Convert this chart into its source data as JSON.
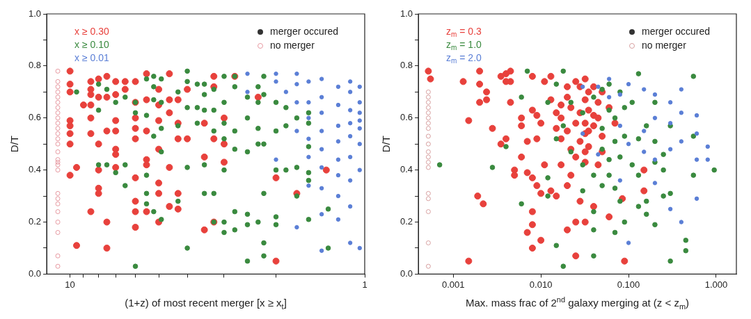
{
  "chart_data": [
    {
      "type": "scatter",
      "xlabel": "(1+z) of most recent merger [x ≥ x$_{t}$]",
      "ylabel": "D/T",
      "log": "x",
      "xlim": [
        12,
        1
      ],
      "xticks": [
        {
          "value": 10,
          "label": "10"
        },
        {
          "value": 9,
          "label": null
        },
        {
          "value": 8,
          "label": null
        },
        {
          "value": 7,
          "label": null
        },
        {
          "value": 6,
          "label": null
        },
        {
          "value": 5,
          "label": null
        },
        {
          "value": 4,
          "label": null
        },
        {
          "value": 3,
          "label": null
        },
        {
          "value": 2,
          "label": null
        },
        {
          "value": 1,
          "label": "1"
        }
      ],
      "ylim": [
        0,
        1
      ],
      "yticks": [
        {
          "value": 0,
          "label": "0.0"
        },
        {
          "value": 0.1,
          "label": null
        },
        {
          "value": 0.2,
          "label": "0.2"
        },
        {
          "value": 0.3,
          "label": null
        },
        {
          "value": 0.4,
          "label": "0.4"
        },
        {
          "value": 0.5,
          "label": null
        },
        {
          "value": 0.6,
          "label": "0.6"
        },
        {
          "value": 0.7,
          "label": null
        },
        {
          "value": 0.8,
          "label": "0.8"
        },
        {
          "value": 0.9,
          "label": null
        },
        {
          "value": 1,
          "label": "1.0"
        }
      ],
      "grid": false,
      "legend": "top right",
      "marker": "circle",
      "annotations": [
        "merger occured"
      ],
      "series": [
        {
          "name": "x ≥ 0.30",
          "color": "#e8413c",
          "x": [
            10,
            10,
            10,
            10,
            10,
            10,
            10,
            10,
            9.5,
            9.5,
            9,
            8.5,
            8.5,
            8.5,
            8.5,
            8.5,
            8.5,
            8.5,
            8,
            8,
            8,
            8,
            8,
            8,
            7.5,
            7.5,
            7.5,
            7.5,
            7.5,
            7,
            7,
            7,
            7,
            7,
            7,
            7,
            6.5,
            6.5,
            6,
            6,
            6,
            6,
            6,
            6,
            6,
            6,
            6,
            5.5,
            5.5,
            5.5,
            5.5,
            5.5,
            5.5,
            5,
            5,
            5,
            5,
            5,
            5,
            5,
            4.6,
            4.6,
            4.6,
            4.6,
            4.6,
            4.3,
            4.3,
            4.3,
            4.3,
            4.3,
            4,
            4,
            3.5,
            3.5,
            3.5,
            3.25,
            3.25,
            3.25,
            3.25,
            3,
            3,
            3,
            2.76,
            2.3,
            2,
            2,
            1.7,
            1.35
          ],
          "values": [
            0.78,
            0.73,
            0.7,
            0.59,
            0.57,
            0.54,
            0.5,
            0.38,
            0.41,
            0.11,
            0.65,
            0.74,
            0.71,
            0.69,
            0.65,
            0.6,
            0.54,
            0.24,
            0.75,
            0.68,
            0.5,
            0.4,
            0.33,
            0.31,
            0.76,
            0.68,
            0.55,
            0.2,
            0.1,
            0.74,
            0.69,
            0.59,
            0.55,
            0.48,
            0.46,
            0.41,
            0.74,
            0.71,
            0.74,
            0.66,
            0.6,
            0.56,
            0.52,
            0.37,
            0.28,
            0.24,
            0.18,
            0.77,
            0.67,
            0.55,
            0.44,
            0.42,
            0.24,
            0.71,
            0.65,
            0.59,
            0.48,
            0.35,
            0.31,
            0.2,
            0.77,
            0.67,
            0.62,
            0.41,
            0.26,
            0.67,
            0.58,
            0.52,
            0.31,
            0.25,
            0.71,
            0.52,
            0.58,
            0.45,
            0.17,
            0.76,
            0.72,
            0.52,
            0.2,
            0.6,
            0.5,
            0.43,
            0.76,
            0.68,
            0.37,
            0.05,
            0.31,
            0.4
          ]
        },
        {
          "name": "x ≥ 0.10",
          "color": "#3a8a3f",
          "x": [
            9.5,
            8,
            8,
            8,
            7.5,
            7.5,
            7,
            7,
            6.5,
            6.5,
            6.5,
            6,
            6,
            6,
            5.5,
            5.5,
            5.5,
            5.5,
            5.5,
            5.2,
            5.2,
            5.2,
            5.2,
            5.2,
            4.9,
            4.9,
            4.9,
            4.9,
            4.9,
            4.3,
            4.3,
            4.3,
            4,
            4,
            4,
            4,
            4,
            3.7,
            3.7,
            3.7,
            3.5,
            3.5,
            3.5,
            3.5,
            3.5,
            3.25,
            3.25,
            3.25,
            3.25,
            3.25,
            3,
            3,
            3,
            3,
            3,
            3,
            3,
            2.76,
            2.76,
            2.76,
            2.76,
            2.76,
            2.76,
            2.5,
            2.5,
            2.5,
            2.5,
            2.5,
            2.5,
            2.3,
            2.3,
            2.3,
            2.3,
            2.3,
            2.2,
            2.2,
            2.2,
            2.2,
            2.2,
            2.2,
            2,
            2,
            2,
            2,
            2,
            1.85,
            1.85,
            1.85,
            1.7,
            1.7,
            1.7,
            1.55,
            1.55,
            1.55,
            1.55,
            1.55,
            1.55,
            1.33,
            1.33
          ],
          "values": [
            0.7,
            0.73,
            0.63,
            0.42,
            0.71,
            0.42,
            0.66,
            0.39,
            0.68,
            0.42,
            0.34,
            0.66,
            0.62,
            0.03,
            0.75,
            0.61,
            0.38,
            0.31,
            0.27,
            0.76,
            0.72,
            0.67,
            0.53,
            0.24,
            0.75,
            0.66,
            0.56,
            0.47,
            0.21,
            0.7,
            0.57,
            0.28,
            0.78,
            0.74,
            0.64,
            0.41,
            0.1,
            0.73,
            0.64,
            0.58,
            0.73,
            0.69,
            0.63,
            0.42,
            0.31,
            0.71,
            0.63,
            0.55,
            0.31,
            0.2,
            0.76,
            0.66,
            0.58,
            0.52,
            0.4,
            0.2,
            0.16,
            0.76,
            0.72,
            0.55,
            0.48,
            0.24,
            0.17,
            0.68,
            0.6,
            0.47,
            0.23,
            0.19,
            0.05,
            0.72,
            0.66,
            0.56,
            0.5,
            0.2,
            0.76,
            0.69,
            0.5,
            0.31,
            0.12,
            0.07,
            0.66,
            0.55,
            0.4,
            0.22,
            0.19,
            0.64,
            0.57,
            0.4,
            0.6,
            0.41,
            0.3,
            0.62,
            0.58,
            0.49,
            0.39,
            0.36,
            0.21,
            0.25,
            0.1
          ]
        },
        {
          "name": "x ≥ 0.01",
          "color": "#5b7fd6",
          "x": [
            2.5,
            2.5,
            2,
            2,
            2,
            1.85,
            1.7,
            1.7,
            1.7,
            1.7,
            1.7,
            1.55,
            1.55,
            1.55,
            1.55,
            1.55,
            1.55,
            1.4,
            1.4,
            1.4,
            1.4,
            1.4,
            1.4,
            1.4,
            1.4,
            1.4,
            1.23,
            1.23,
            1.23,
            1.23,
            1.23,
            1.23,
            1.23,
            1.23,
            1.12,
            1.12,
            1.12,
            1.12,
            1.12,
            1.12,
            1.12,
            1.12,
            1.12,
            1.04,
            1.04,
            1.04,
            1.04,
            1.04,
            1.04,
            1.04,
            1.04
          ],
          "values": [
            0.77,
            0.7,
            0.77,
            0.74,
            0.44,
            0.7,
            0.77,
            0.73,
            0.66,
            0.55,
            0.18,
            0.74,
            0.66,
            0.6,
            0.52,
            0.45,
            0.34,
            0.75,
            0.68,
            0.62,
            0.55,
            0.48,
            0.41,
            0.33,
            0.23,
            0.09,
            0.72,
            0.65,
            0.57,
            0.51,
            0.44,
            0.38,
            0.3,
            0.21,
            0.74,
            0.7,
            0.63,
            0.58,
            0.53,
            0.45,
            0.36,
            0.26,
            0.12,
            0.72,
            0.66,
            0.62,
            0.59,
            0.56,
            0.5,
            0.4,
            0.1
          ]
        },
        {
          "name": "no merger",
          "color": "#e89aa2",
          "x": [
            11,
            11,
            11,
            11,
            11,
            11,
            11,
            11,
            11,
            11,
            11,
            11,
            11,
            11,
            11,
            11,
            11,
            11,
            11,
            11,
            11,
            11,
            11,
            11,
            11,
            11,
            11
          ],
          "values": [
            0.78,
            0.74,
            0.72,
            0.7,
            0.68,
            0.66,
            0.64,
            0.62,
            0.6,
            0.58,
            0.56,
            0.54,
            0.52,
            0.5,
            0.47,
            0.44,
            0.43,
            0.42,
            0.4,
            0.31,
            0.29,
            0.27,
            0.24,
            0.2,
            0.16,
            0.07,
            0.03
          ]
        }
      ]
    },
    {
      "type": "scatter",
      "xlabel": "Max. mass frac of 2$^{nd}$ galaxy merging at (z < z$_{m}$)",
      "ylabel": "D/T",
      "log": "x",
      "xlim": [
        0.0004,
        1.7
      ],
      "xticks": [
        {
          "value": 0.001,
          "label": "0.001"
        },
        {
          "value": 0.01,
          "label": "0.010"
        },
        {
          "value": 0.1,
          "label": "0.100"
        },
        {
          "value": 1,
          "label": "1.000"
        }
      ],
      "ylim": [
        0,
        1
      ],
      "yticks": [
        {
          "value": 0,
          "label": "0.0"
        },
        {
          "value": 0.1,
          "label": null
        },
        {
          "value": 0.2,
          "label": "0.2"
        },
        {
          "value": 0.3,
          "label": null
        },
        {
          "value": 0.4,
          "label": "0.4"
        },
        {
          "value": 0.5,
          "label": null
        },
        {
          "value": 0.6,
          "label": "0.6"
        },
        {
          "value": 0.7,
          "label": null
        },
        {
          "value": 0.8,
          "label": "0.8"
        },
        {
          "value": 0.9,
          "label": null
        },
        {
          "value": 1,
          "label": "1.0"
        }
      ],
      "grid": false,
      "legend": "top right",
      "marker": "circle",
      "annotations": [
        "merger occured"
      ],
      "series": [
        {
          "name": "z$_{m}$ = 0.3",
          "color": "#e8413c",
          "x": [
            0.00052,
            0.00055,
            0.0013,
            0.0015,
            0.0015,
            0.0019,
            0.002,
            0.002,
            0.002,
            0.0022,
            0.0024,
            0.0024,
            0.0028,
            0.0035,
            0.0035,
            0.004,
            0.004,
            0.004,
            0.0045,
            0.0045,
            0.0045,
            0.005,
            0.005,
            0.006,
            0.006,
            0.006,
            0.007,
            0.007,
            0.007,
            0.008,
            0.008,
            0.008,
            0.008,
            0.008,
            0.008,
            0.009,
            0.009,
            0.009,
            0.01,
            0.01,
            0.01,
            0.011,
            0.011,
            0.013,
            0.013,
            0.013,
            0.015,
            0.015,
            0.015,
            0.017,
            0.017,
            0.017,
            0.017,
            0.02,
            0.02,
            0.02,
            0.02,
            0.02,
            0.022,
            0.022,
            0.022,
            0.025,
            0.025,
            0.025,
            0.025,
            0.025,
            0.028,
            0.028,
            0.028,
            0.028,
            0.032,
            0.032,
            0.032,
            0.032,
            0.032,
            0.032,
            0.032,
            0.035,
            0.035,
            0.035,
            0.035,
            0.04,
            0.04,
            0.04,
            0.04,
            0.045,
            0.045,
            0.045,
            0.05,
            0.05,
            0.05,
            0.06,
            0.06,
            0.07,
            0.085,
            0.09,
            0.15,
            0.15
          ],
          "values": [
            0.78,
            0.75,
            0.74,
            0.59,
            0.05,
            0.3,
            0.78,
            0.73,
            0.66,
            0.27,
            0.67,
            0.7,
            0.56,
            0.76,
            0.5,
            0.77,
            0.74,
            0.52,
            0.78,
            0.74,
            0.66,
            0.4,
            0.38,
            0.6,
            0.57,
            0.45,
            0.51,
            0.39,
            0.16,
            0.76,
            0.63,
            0.37,
            0.24,
            0.19,
            0.1,
            0.61,
            0.52,
            0.34,
            0.58,
            0.31,
            0.13,
            0.74,
            0.42,
            0.76,
            0.67,
            0.32,
            0.62,
            0.56,
            0.3,
            0.65,
            0.6,
            0.52,
            0.42,
            0.72,
            0.68,
            0.55,
            0.34,
            0.17,
            0.64,
            0.48,
            0.38,
            0.74,
            0.58,
            0.45,
            0.2,
            0.07,
            0.72,
            0.62,
            0.51,
            0.28,
            0.75,
            0.67,
            0.58,
            0.54,
            0.47,
            0.43,
            0.2,
            0.7,
            0.63,
            0.55,
            0.49,
            0.72,
            0.61,
            0.57,
            0.26,
            0.66,
            0.6,
            0.42,
            0.7,
            0.53,
            0.47,
            0.64,
            0.22,
            0.58,
            0.29,
            0.05,
            0.4,
            0.32
          ]
        },
        {
          "name": "z$_{m}$ = 1.0",
          "color": "#3a8a3f",
          "x": [
            0.0007,
            0.0028,
            0.004,
            0.006,
            0.006,
            0.007,
            0.012,
            0.012,
            0.012,
            0.015,
            0.015,
            0.015,
            0.018,
            0.018,
            0.018,
            0.022,
            0.022,
            0.03,
            0.03,
            0.03,
            0.04,
            0.04,
            0.04,
            0.04,
            0.04,
            0.05,
            0.05,
            0.05,
            0.05,
            0.06,
            0.06,
            0.06,
            0.06,
            0.07,
            0.07,
            0.07,
            0.07,
            0.08,
            0.08,
            0.08,
            0.09,
            0.09,
            0.09,
            0.11,
            0.11,
            0.13,
            0.13,
            0.13,
            0.13,
            0.16,
            0.16,
            0.16,
            0.2,
            0.2,
            0.2,
            0.2,
            0.25,
            0.25,
            0.25,
            0.3,
            0.3,
            0.3,
            0.45,
            0.45,
            0.55,
            0.55,
            0.55,
            0.95
          ],
          "values": [
            0.42,
            0.41,
            0.49,
            0.68,
            0.27,
            0.78,
            0.66,
            0.37,
            0.3,
            0.73,
            0.52,
            0.11,
            0.78,
            0.57,
            0.03,
            0.66,
            0.47,
            0.62,
            0.42,
            0.32,
            0.68,
            0.38,
            0.24,
            0.17,
            0.07,
            0.71,
            0.56,
            0.48,
            0.34,
            0.73,
            0.63,
            0.44,
            0.38,
            0.6,
            0.51,
            0.33,
            0.16,
            0.7,
            0.45,
            0.28,
            0.64,
            0.53,
            0.2,
            0.66,
            0.42,
            0.77,
            0.52,
            0.26,
            0.38,
            0.57,
            0.23,
            0.28,
            0.66,
            0.51,
            0.43,
            0.19,
            0.46,
            0.4,
            0.3,
            0.57,
            0.05,
            0.31,
            0.09,
            0.13,
            0.53,
            0.76,
            0.38,
            0.4
          ]
        },
        {
          "name": "z$_{m}$ = 2.0",
          "color": "#5b7fd6",
          "x": [
            0.03,
            0.03,
            0.045,
            0.045,
            0.06,
            0.06,
            0.08,
            0.08,
            0.08,
            0.1,
            0.1,
            0.1,
            0.15,
            0.15,
            0.15,
            0.2,
            0.2,
            0.2,
            0.2,
            0.3,
            0.3,
            0.3,
            0.3,
            0.4,
            0.4,
            0.4,
            0.4,
            0.6,
            0.6,
            0.6,
            0.6,
            0.8,
            0.8
          ],
          "values": [
            0.72,
            0.54,
            0.72,
            0.46,
            0.75,
            0.68,
            0.69,
            0.57,
            0.36,
            0.73,
            0.5,
            0.12,
            0.71,
            0.55,
            0.47,
            0.69,
            0.6,
            0.44,
            0.35,
            0.66,
            0.58,
            0.48,
            0.25,
            0.71,
            0.62,
            0.51,
            0.2,
            0.61,
            0.54,
            0.44,
            0.29,
            0.49,
            0.44
          ]
        },
        {
          "name": "no merger",
          "color": "#d8a0a0",
          "x": [
            0.00052,
            0.00052,
            0.00052,
            0.00052,
            0.00052,
            0.00052,
            0.00052,
            0.00052,
            0.00052,
            0.00052,
            0.00052,
            0.00052,
            0.00052,
            0.00052,
            0.00052,
            0.00052,
            0.00052,
            0.00052,
            0.00052
          ],
          "values": [
            0.7,
            0.68,
            0.66,
            0.64,
            0.62,
            0.6,
            0.58,
            0.56,
            0.53,
            0.5,
            0.47,
            0.45,
            0.43,
            0.41,
            0.31,
            0.29,
            0.24,
            0.12,
            0.03
          ]
        }
      ]
    }
  ]
}
